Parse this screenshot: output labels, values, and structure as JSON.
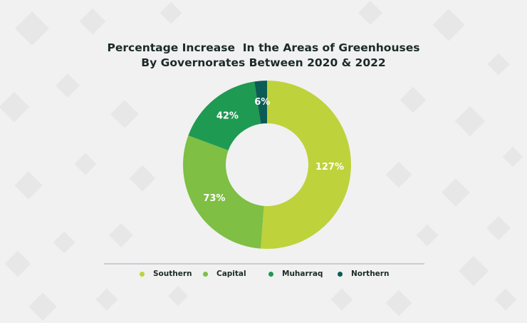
{
  "colors": {
    "background": "#f1f1f1",
    "pattern": "#e3e3e3",
    "text": "#1b2a28",
    "divider": "#c9cdd2"
  },
  "title_lines": [
    "Percentage Increase  In the Areas of Greenhouses",
    "By Governorates Between 2020 & 2022"
  ],
  "chart_data": {
    "type": "pie",
    "variant": "donut",
    "title": "Percentage Increase  In the Areas of Greenhouses By Governorates Between 2020 & 2022",
    "unit": "%",
    "legend_position": "bottom",
    "categories": [
      "Southern",
      "Capital",
      "Muharraq",
      "Northern"
    ],
    "values": [
      127,
      73,
      42,
      6
    ],
    "labels": [
      "127%",
      "73%",
      "42%",
      "6%"
    ],
    "colors": [
      "#bed23c",
      "#7ebf44",
      "#1f9a52",
      "#0c5c56"
    ]
  }
}
